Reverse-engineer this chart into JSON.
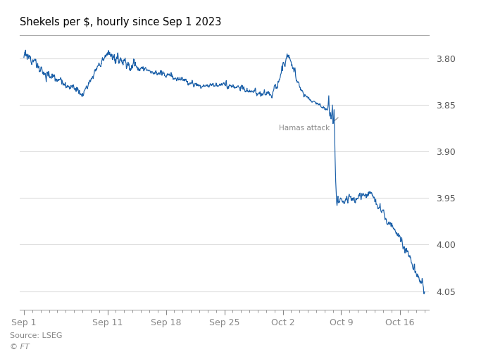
{
  "title": "Shekels per $, hourly since Sep 1 2023",
  "source": "Source: LSEG",
  "copyright": "© FT",
  "annotation_text": "Hamas attack",
  "y_ticks": [
    3.8,
    3.85,
    3.9,
    3.95,
    4.0,
    4.05
  ],
  "y_min": 3.775,
  "y_max": 4.07,
  "line_color": "#1a5fa8",
  "bg_color": "#ffffff",
  "fig_bg_color": "#ffffff",
  "grid_color": "#ffffff",
  "tick_label_color": "#555555",
  "title_color": "#000000",
  "source_color": "#888888",
  "x_tick_labels": [
    "Sep 1",
    "Sep 11",
    "Sep 18",
    "Sep 25",
    "Oct 2",
    "Oct 9",
    "Oct 16"
  ],
  "x_tick_days": [
    0,
    10,
    17,
    24,
    31,
    38,
    45
  ],
  "total_days": 49,
  "spine_color": "#cccccc"
}
